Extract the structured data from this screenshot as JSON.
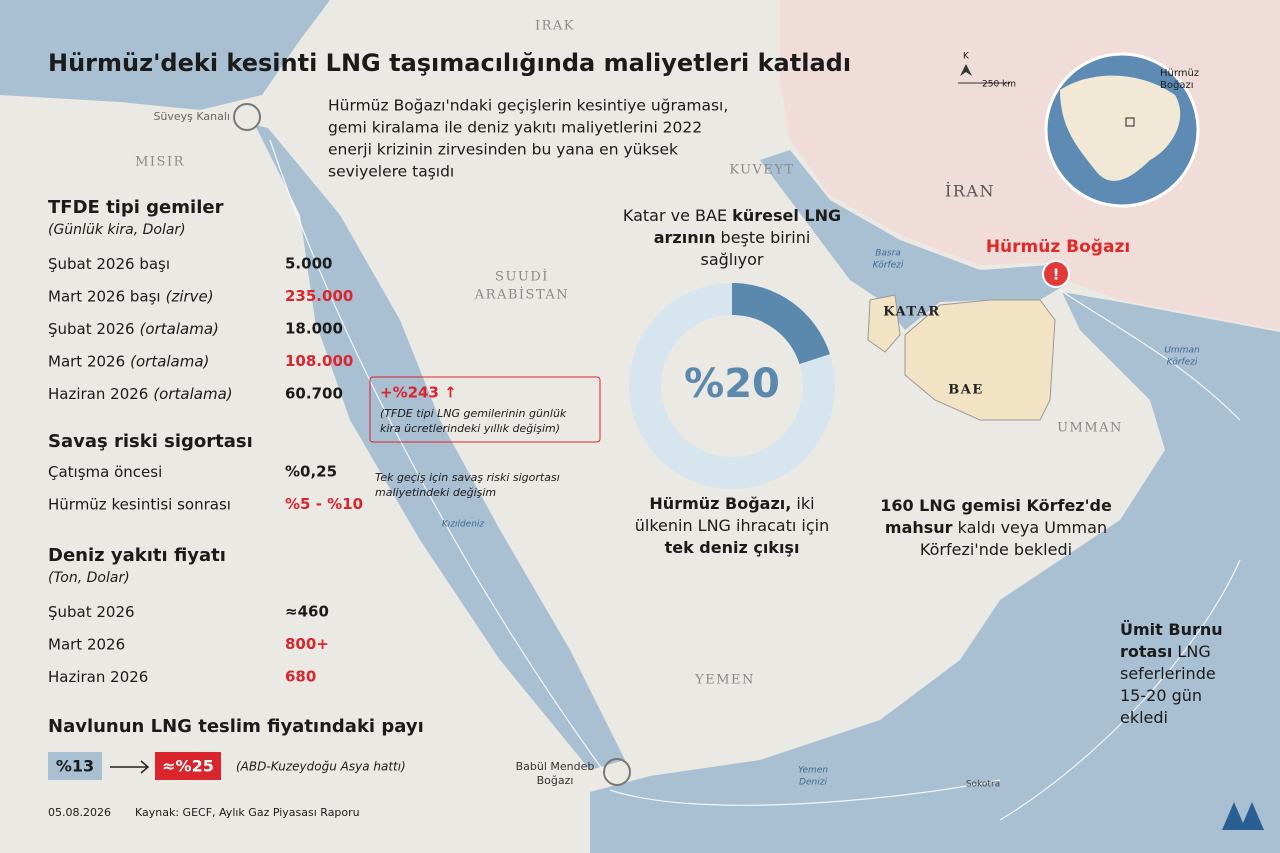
{
  "title": "Hürmüz'deki kesinti LNG taşımacılığında maliyetleri katladı",
  "intro": [
    "Hürmüz Boğazı'ndaki geçişlerin kesintiye uğraması,",
    "gemi kiralama ile deniz yakıtı maliyetlerini 2022",
    "enerji krizinin zirvesinden bu yana en yüksek",
    "seviyelere taşıdı"
  ],
  "sections": [
    {
      "title": "TFDE tipi gemiler",
      "subtitle": "(Günlük kira, Dolar)",
      "rows": [
        {
          "label": "Şubat 2026 başı",
          "value": "5.000"
        },
        {
          "label": "Mart 2026 başı",
          "note": "(zirve)",
          "value": "235.000",
          "highlight": true
        },
        {
          "label": "Şubat 2026",
          "note": "(ortalama)",
          "value": "18.000"
        },
        {
          "label": "Mart 2026",
          "note": "(ortalama)",
          "value": "108.000",
          "highlight": true
        },
        {
          "label": "Haziran 2026",
          "note": "(ortalama)",
          "value": "60.700"
        }
      ]
    },
    {
      "title": "Savaş riski sigortası",
      "rows": [
        {
          "label": "Çatışma öncesi",
          "value": "%0,25"
        },
        {
          "label": "Hürmüz kesintisi sonrası",
          "value": "%5 - %10",
          "highlight": true
        }
      ]
    },
    {
      "title": "Deniz yakıtı fiyatı",
      "subtitle": "(Ton, Dolar)",
      "rows": [
        {
          "label": "Şubat 2026",
          "value": "≈460"
        },
        {
          "label": "Mart 2026",
          "value": "800+",
          "highlight": true
        },
        {
          "label": "Haziran 2026",
          "value": "680",
          "highlight": true
        }
      ]
    },
    {
      "title": "Navlunun LNG teslim fiyatındaki payı"
    }
  ],
  "freight": {
    "from": "%13",
    "to": "≈%25",
    "note": "(ABD-Kuzeydoğu Asya hattı)"
  },
  "charter_change": {
    "value": "+%243 ↑",
    "note": [
      "(TFDE tipi LNG gemilerinin günlük",
      "kira ücretlerindeki yıllık değişim)"
    ]
  },
  "insurance_note": [
    "Tek geçiş için savaş riski sigortası",
    "maliyetindeki değişim"
  ],
  "donut": {
    "value": 20,
    "label": "%20",
    "top": [
      [
        {
          "text": "Katar ve BAE "
        },
        {
          "text": "küresel LNG",
          "bold": true
        }
      ],
      [
        {
          "text": "arzının",
          "bold": true
        },
        {
          "text": " beşte birini"
        }
      ],
      [
        {
          "text": "sağlıyor"
        }
      ]
    ],
    "bottom": [
      [
        {
          "text": "Hürmüz Boğazı,",
          "bold": true
        },
        {
          "text": " iki"
        }
      ],
      [
        {
          "text": "ülkenin LNG ihracatı için"
        }
      ],
      [
        {
          "text": "tek deniz çıkışı",
          "bold": true
        }
      ]
    ]
  },
  "stranded": [
    [
      {
        "text": "160 LNG gemisi Körfez'de",
        "bold": true
      }
    ],
    [
      {
        "text": "mahsur",
        "bold": true
      },
      {
        "text": " kaldı veya Umman"
      }
    ],
    [
      {
        "text": "Körfezi'nde bekledi"
      }
    ]
  ],
  "cape": [
    [
      {
        "text": "Ümit Burnu",
        "bold": true
      }
    ],
    [
      {
        "text": "rotası",
        "bold": true
      },
      {
        "text": " LNG"
      }
    ],
    [
      {
        "text": "seferlerinde"
      }
    ],
    [
      {
        "text": "15-20 gün"
      }
    ],
    [
      {
        "text": "ekledi"
      }
    ]
  ],
  "map_labels": {
    "irak": "IRAK",
    "misir": "MISIR",
    "suudi": "SUUDİ",
    "arabistan": "ARABİSTAN",
    "kuveyt": "KUVEYT",
    "iran": "İRAN",
    "katar": "KATAR",
    "bae": "BAE",
    "umman": "UMMAN",
    "yemen": "YEMEN",
    "suveys": "Süveyş Kanalı",
    "kizildeniz": "Kızıldeniz",
    "basra1": "Basra",
    "basra2": "Körfezi",
    "umman_k1": "Umman",
    "umman_k2": "Körfezi",
    "yemen_d1": "Yemen",
    "yemen_d2": "Denizi",
    "sokotra": "Sokotra",
    "babul1": "Babül Mendeb",
    "babul2": "Boğazı",
    "hurmuz": "Hürmüz Boğazı",
    "globe1": "Hürmüz",
    "globe2": "Boğazı",
    "north": "K",
    "scale": "250 km"
  },
  "footer": {
    "date": "05.08.2026",
    "source": "Kaynak: GECF, Aylık Gaz Piyasası Raporu"
  }
}
